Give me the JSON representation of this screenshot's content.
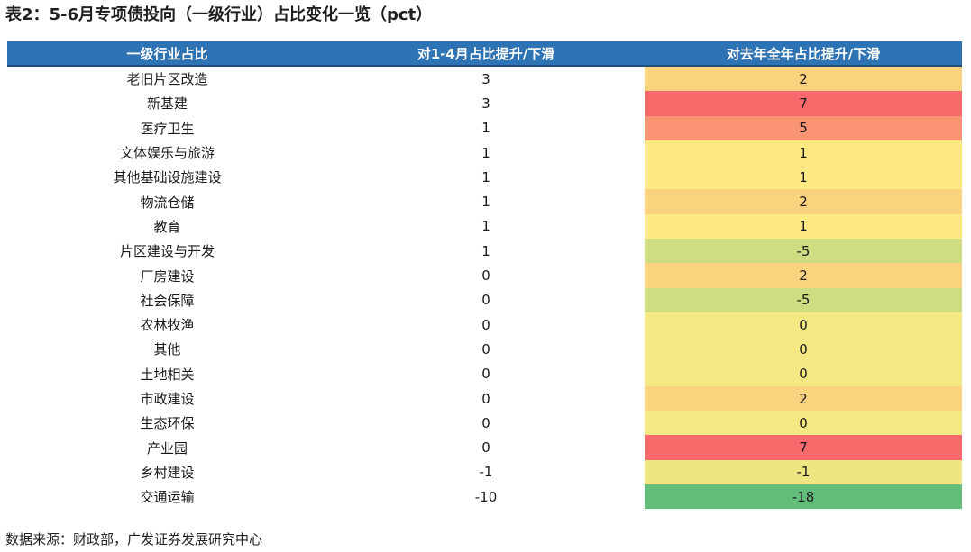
{
  "title": "表2：5-6月专项债投向（一级行业）占比变化一览（pct）",
  "table": {
    "headers": [
      "一级行业占比",
      "对1-4月占比提升/下滑",
      "对去年全年占比提升/下滑"
    ],
    "rows": [
      {
        "industry": "老旧片区改造",
        "vs_jan_apr": "3",
        "vs_last_year": "2",
        "color": "#fbd37f"
      },
      {
        "industry": "新基建",
        "vs_jan_apr": "3",
        "vs_last_year": "7",
        "color": "#f8696b"
      },
      {
        "industry": "医疗卫生",
        "vs_jan_apr": "1",
        "vs_last_year": "5",
        "color": "#fa9473"
      },
      {
        "industry": "文体娱乐与旅游",
        "vs_jan_apr": "1",
        "vs_last_year": "1",
        "color": "#fde983"
      },
      {
        "industry": "其他基础设施建设",
        "vs_jan_apr": "1",
        "vs_last_year": "1",
        "color": "#fde983"
      },
      {
        "industry": "物流仓储",
        "vs_jan_apr": "1",
        "vs_last_year": "2",
        "color": "#fbd37f"
      },
      {
        "industry": "教育",
        "vs_jan_apr": "1",
        "vs_last_year": "1",
        "color": "#fde983"
      },
      {
        "industry": "片区建设与开发",
        "vs_jan_apr": "1",
        "vs_last_year": "-5",
        "color": "#cfdc81"
      },
      {
        "industry": "厂房建设",
        "vs_jan_apr": "0",
        "vs_last_year": "2",
        "color": "#fbd37f"
      },
      {
        "industry": "社会保障",
        "vs_jan_apr": "0",
        "vs_last_year": "-5",
        "color": "#cfdc81"
      },
      {
        "industry": "农林牧渔",
        "vs_jan_apr": "0",
        "vs_last_year": "0",
        "color": "#f3e884"
      },
      {
        "industry": "其他",
        "vs_jan_apr": "0",
        "vs_last_year": "0",
        "color": "#f3e884"
      },
      {
        "industry": "土地相关",
        "vs_jan_apr": "0",
        "vs_last_year": "0",
        "color": "#f3e884"
      },
      {
        "industry": "市政建设",
        "vs_jan_apr": "0",
        "vs_last_year": "2",
        "color": "#fbd37f"
      },
      {
        "industry": "生态环保",
        "vs_jan_apr": "0",
        "vs_last_year": "0",
        "color": "#f3e884"
      },
      {
        "industry": "产业园",
        "vs_jan_apr": "0",
        "vs_last_year": "7",
        "color": "#f8696b"
      },
      {
        "industry": "乡村建设",
        "vs_jan_apr": "-1",
        "vs_last_year": "-1",
        "color": "#ede683"
      },
      {
        "industry": "交通运输",
        "vs_jan_apr": "-10",
        "vs_last_year": "-18",
        "color": "#63be7b"
      }
    ]
  },
  "source": "数据来源：财政部，广发证券发展研究中心",
  "colors": {
    "header_bg": "#2e74b5",
    "header_text": "#ffffff"
  }
}
